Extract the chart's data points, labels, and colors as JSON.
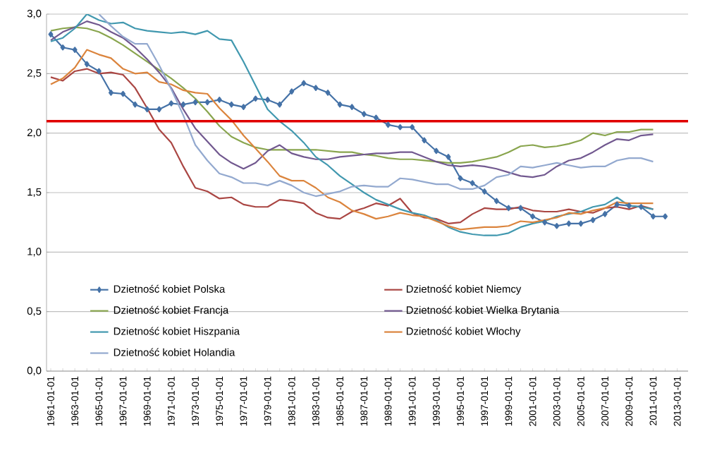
{
  "chart_data": {
    "type": "line",
    "categories": [
      "1961-01-01",
      null,
      "1963-01-01",
      null,
      "1965-01-01",
      null,
      "1967-01-01",
      null,
      "1969-01-01",
      null,
      "1971-01-01",
      null,
      "1973-01-01",
      null,
      "1975-01-01",
      null,
      "1977-01-01",
      null,
      "1979-01-01",
      null,
      "1981-01-01",
      null,
      "1983-01-01",
      null,
      "1985-01-01",
      null,
      "1987-01-01",
      null,
      "1989-01-01",
      null,
      "1991-01-01",
      null,
      "1993-01-01",
      null,
      "1995-01-01",
      null,
      "1997-01-01",
      null,
      "1999-01-01",
      null,
      "2001-01-01",
      null,
      "2003-01-01",
      null,
      "2005-01-01",
      null,
      "2007-01-01",
      null,
      "2009-01-01",
      null,
      "2011-01-01",
      null,
      "2013-01-01"
    ],
    "series": [
      {
        "name": "Dzietność kobiet  Polska",
        "color": "#4572a7",
        "marker": "diamond",
        "values": [
          2.83,
          2.72,
          2.7,
          2.58,
          2.52,
          2.34,
          2.33,
          2.24,
          2.2,
          2.2,
          2.25,
          2.24,
          2.26,
          2.26,
          2.28,
          2.24,
          2.22,
          2.29,
          2.28,
          2.24,
          2.35,
          2.42,
          2.38,
          2.34,
          2.24,
          2.22,
          2.16,
          2.13,
          2.07,
          2.05,
          2.05,
          1.94,
          1.85,
          1.8,
          1.62,
          1.58,
          1.51,
          1.43,
          1.37,
          1.37,
          1.3,
          1.25,
          1.22,
          1.24,
          1.24,
          1.27,
          1.32,
          1.4,
          1.39,
          1.38,
          1.3,
          1.3,
          null
        ]
      },
      {
        "name": "Dzietność kobiet  Niemcy",
        "color": "#aa4643",
        "values": [
          2.47,
          2.44,
          2.52,
          2.54,
          2.5,
          2.51,
          2.49,
          2.38,
          2.21,
          2.03,
          1.92,
          1.72,
          1.54,
          1.51,
          1.45,
          1.46,
          1.4,
          1.38,
          1.38,
          1.44,
          1.43,
          1.41,
          1.33,
          1.29,
          1.28,
          1.34,
          1.37,
          1.41,
          1.39,
          1.45,
          1.33,
          1.29,
          1.28,
          1.24,
          1.25,
          1.32,
          1.37,
          1.36,
          1.36,
          1.38,
          1.35,
          1.34,
          1.34,
          1.36,
          1.34,
          1.33,
          1.37,
          1.38,
          1.36,
          1.39,
          1.36,
          null,
          null
        ]
      },
      {
        "name": "Dzietność kobiet  Francja",
        "color": "#89a54e",
        "values": [
          2.86,
          2.88,
          2.89,
          2.88,
          2.85,
          2.8,
          2.74,
          2.67,
          2.6,
          2.53,
          2.46,
          2.38,
          2.29,
          2.18,
          2.06,
          1.97,
          1.92,
          1.88,
          1.86,
          1.86,
          1.86,
          1.86,
          1.86,
          1.85,
          1.84,
          1.84,
          1.82,
          1.81,
          1.79,
          1.78,
          1.78,
          1.77,
          1.76,
          1.75,
          1.75,
          1.76,
          1.78,
          1.8,
          1.84,
          1.89,
          1.9,
          1.88,
          1.89,
          1.91,
          1.94,
          2.0,
          1.98,
          2.01,
          2.01,
          2.03,
          2.03,
          null,
          null
        ]
      },
      {
        "name": "Dzietność kobiet  Wielka Brytania",
        "color": "#71588f",
        "values": [
          2.78,
          2.85,
          2.89,
          2.94,
          2.91,
          2.85,
          2.8,
          2.72,
          2.62,
          2.51,
          2.38,
          2.2,
          2.04,
          1.93,
          1.82,
          1.75,
          1.7,
          1.75,
          1.85,
          1.9,
          1.83,
          1.8,
          1.78,
          1.78,
          1.8,
          1.81,
          1.82,
          1.83,
          1.83,
          1.84,
          1.84,
          1.8,
          1.76,
          1.73,
          1.72,
          1.73,
          1.72,
          1.7,
          1.67,
          1.64,
          1.63,
          1.65,
          1.72,
          1.77,
          1.79,
          1.84,
          1.9,
          1.95,
          1.94,
          1.98,
          1.99,
          null,
          null
        ]
      },
      {
        "name": "Dzietność kobiet  Hiszpania",
        "color": "#4198af",
        "values": [
          2.77,
          2.8,
          2.88,
          3.0,
          2.95,
          2.92,
          2.93,
          2.88,
          2.86,
          2.85,
          2.84,
          2.85,
          2.83,
          2.86,
          2.79,
          2.78,
          2.6,
          2.4,
          2.2,
          2.1,
          2.02,
          1.92,
          1.8,
          1.73,
          1.64,
          1.57,
          1.5,
          1.44,
          1.4,
          1.36,
          1.33,
          1.31,
          1.27,
          1.21,
          1.17,
          1.15,
          1.14,
          1.14,
          1.16,
          1.21,
          1.24,
          1.26,
          1.3,
          1.32,
          1.34,
          1.38,
          1.4,
          1.46,
          1.39,
          1.38,
          1.36,
          null,
          null
        ]
      },
      {
        "name": "Dzietność kobiet  Włochy",
        "color": "#db843d",
        "values": [
          2.41,
          2.46,
          2.55,
          2.7,
          2.66,
          2.63,
          2.54,
          2.5,
          2.51,
          2.43,
          2.41,
          2.36,
          2.34,
          2.33,
          2.21,
          2.11,
          1.98,
          1.87,
          1.76,
          1.64,
          1.6,
          1.6,
          1.54,
          1.46,
          1.42,
          1.35,
          1.32,
          1.28,
          1.3,
          1.33,
          1.31,
          1.3,
          1.26,
          1.22,
          1.19,
          1.2,
          1.21,
          1.21,
          1.22,
          1.26,
          1.25,
          1.27,
          1.29,
          1.33,
          1.32,
          1.35,
          1.37,
          1.42,
          1.41,
          1.41,
          1.41,
          null,
          null
        ]
      },
      {
        "name": "Dzietność kobiet  Holandia",
        "color": "#93a9cf",
        "values": [
          null,
          null,
          null,
          null,
          3.0,
          2.9,
          2.81,
          2.75,
          2.75,
          2.57,
          2.37,
          2.15,
          1.9,
          1.77,
          1.66,
          1.63,
          1.58,
          1.58,
          1.56,
          1.6,
          1.56,
          1.5,
          1.47,
          1.49,
          1.51,
          1.55,
          1.56,
          1.55,
          1.55,
          1.62,
          1.61,
          1.59,
          1.57,
          1.57,
          1.53,
          1.53,
          1.56,
          1.63,
          1.65,
          1.72,
          1.71,
          1.73,
          1.75,
          1.73,
          1.71,
          1.72,
          1.72,
          1.77,
          1.79,
          1.79,
          1.76,
          null,
          null
        ]
      }
    ],
    "ylim": [
      0,
      3
    ],
    "yticks": [
      {
        "value": 0,
        "label": "0,0"
      },
      {
        "value": 0.5,
        "label": "0,5"
      },
      {
        "value": 1,
        "label": "1,0"
      },
      {
        "value": 1.5,
        "label": "1,5"
      },
      {
        "value": 2,
        "label": "2,0"
      },
      {
        "value": 2.5,
        "label": "2,5"
      },
      {
        "value": 3,
        "label": "3,0"
      }
    ],
    "ref_lines": [
      {
        "axis": "y",
        "value": 2.1,
        "color": "#e00000"
      }
    ],
    "grid": "y",
    "legend": "bottom"
  }
}
